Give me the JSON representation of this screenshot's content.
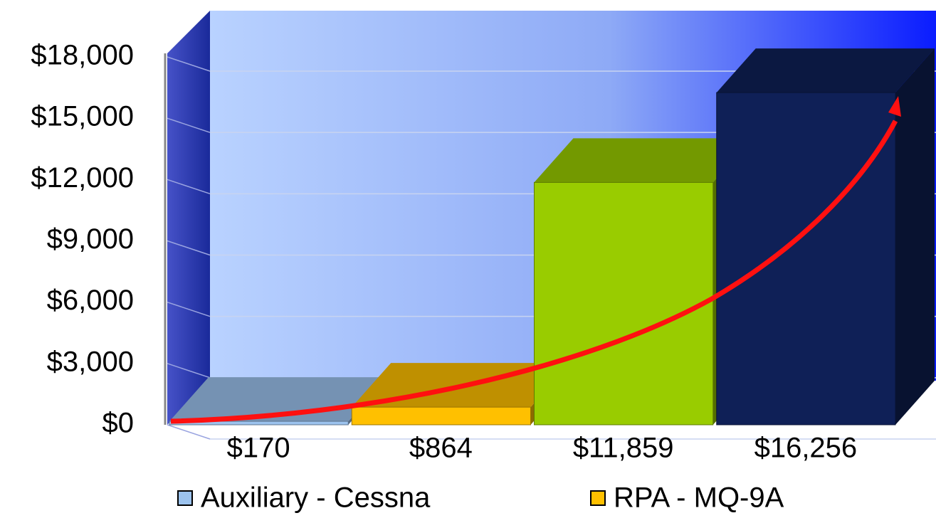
{
  "chart_data": {
    "type": "bar3d",
    "ylim": [
      0,
      18000
    ],
    "yticks": [
      {
        "value": 0,
        "label": "$0"
      },
      {
        "value": 3000,
        "label": "$3,000"
      },
      {
        "value": 6000,
        "label": "$6,000"
      },
      {
        "value": 9000,
        "label": "$9,000"
      },
      {
        "value": 12000,
        "label": "$12,000"
      },
      {
        "value": 15000,
        "label": "$15,000"
      },
      {
        "value": 18000,
        "label": "$18,000"
      }
    ],
    "grid": true,
    "series": [
      {
        "name": "Auxiliary - Cessna",
        "color": "#9cc3ee",
        "values": [
          170
        ],
        "value_labels": [
          "$170"
        ]
      },
      {
        "name": "RPA - MQ-9A",
        "color": "#ffc000",
        "values": [
          864
        ],
        "value_labels": [
          "$864"
        ]
      },
      {
        "color": "#99cc00",
        "values": [
          11859
        ],
        "value_labels": [
          "$11,859"
        ]
      },
      {
        "color": "#0f2057",
        "values": [
          16256
        ],
        "value_labels": [
          "$16,256"
        ]
      }
    ]
  }
}
